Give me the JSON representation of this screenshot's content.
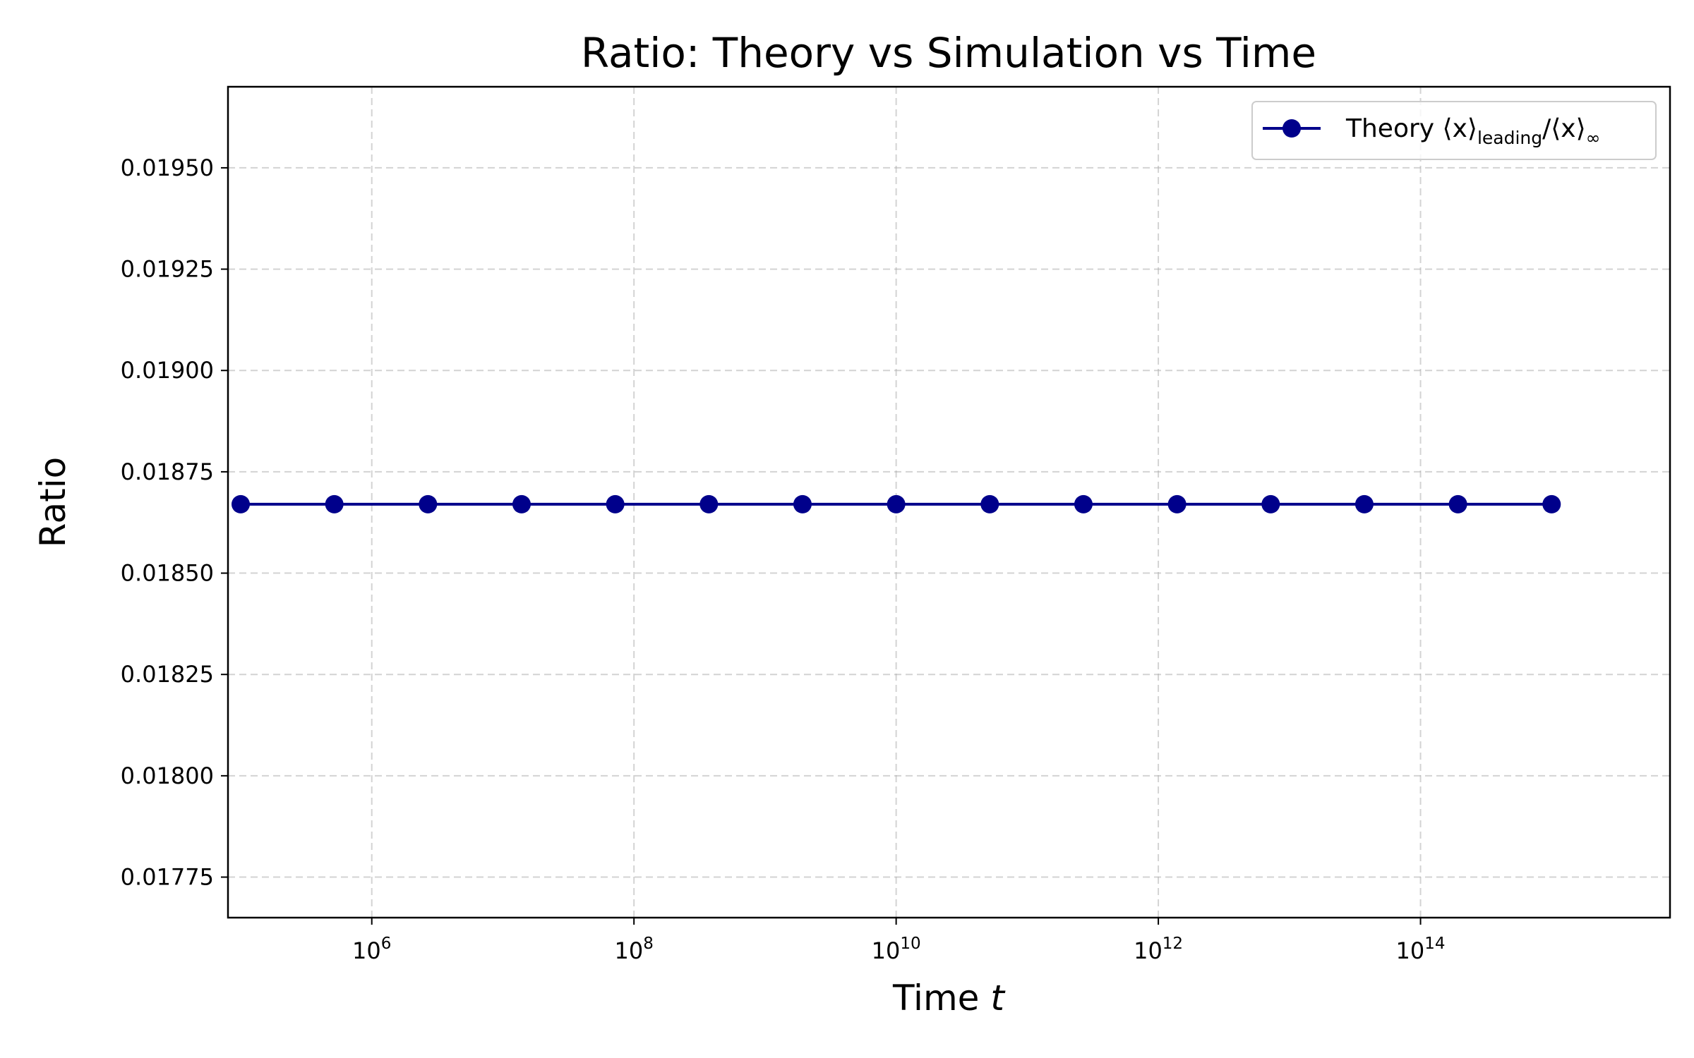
{
  "chart_data": {
    "type": "line",
    "title": "Ratio: Theory vs Simulation vs Time",
    "xlabel": "Time",
    "xlabel_var": "t",
    "ylabel": "Ratio",
    "xscale": "log",
    "xlim": [
      80000,
      8000000000000000
    ],
    "ylim": [
      0.01765,
      0.0197
    ],
    "x_ticks": [
      {
        "value": 1000000,
        "base": "10",
        "exp": "6"
      },
      {
        "value": 100000000,
        "base": "10",
        "exp": "8"
      },
      {
        "value": 10000000000,
        "base": "10",
        "exp": "10"
      },
      {
        "value": 1000000000000,
        "base": "10",
        "exp": "12"
      },
      {
        "value": 100000000000000,
        "base": "10",
        "exp": "14"
      }
    ],
    "y_ticks": [
      {
        "value": 0.01775,
        "label": "0.01775"
      },
      {
        "value": 0.018,
        "label": "0.01800"
      },
      {
        "value": 0.01825,
        "label": "0.01825"
      },
      {
        "value": 0.0185,
        "label": "0.01850"
      },
      {
        "value": 0.01875,
        "label": "0.01875"
      },
      {
        "value": 0.019,
        "label": "0.01900"
      },
      {
        "value": 0.01925,
        "label": "0.01925"
      },
      {
        "value": 0.0195,
        "label": "0.01950"
      }
    ],
    "grid": true,
    "legend_position": "top-right",
    "legend": {
      "prefix": "Theory ⟨x⟩",
      "sub1": "leading",
      "mid": "/⟨x⟩",
      "sub2": "∞"
    },
    "series": [
      {
        "color": "#00008b",
        "marker": "circle",
        "x": [
          100000,
          517947,
          2682696,
          13894955,
          71968567,
          372759372,
          1930697729,
          10000000000,
          51794746792,
          268269579528,
          1389495494373,
          7196856730012,
          37275937203149,
          193069772888325,
          1000000000000000
        ],
        "y": [
          0.01867,
          0.01867,
          0.01867,
          0.01867,
          0.01867,
          0.01867,
          0.01867,
          0.01867,
          0.01867,
          0.01867,
          0.01867,
          0.01867,
          0.01867,
          0.01867,
          0.01867
        ]
      }
    ]
  }
}
